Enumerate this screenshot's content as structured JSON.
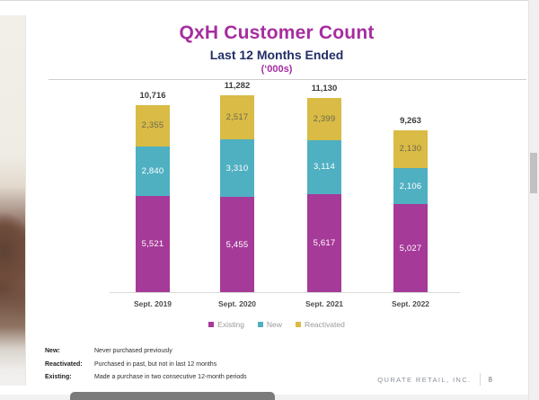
{
  "slide": {
    "title": "QxH Customer Count",
    "subtitle": "Last 12 Months Ended",
    "units": "(‘000s)"
  },
  "chart_data": {
    "type": "bar",
    "variant": "stacked",
    "title": "QxH Customer Count",
    "subtitle": "Last 12 Months Ended",
    "units": "thousands of customers",
    "categories": [
      "Sept. 2019",
      "Sept. 2020",
      "Sept. 2021",
      "Sept. 2022"
    ],
    "series": [
      {
        "name": "Existing",
        "color": "#a63a99",
        "label_color": "#ffffff",
        "values": [
          5521,
          5455,
          5617,
          5027
        ]
      },
      {
        "name": "New",
        "color": "#4fb0c1",
        "label_color": "#ffffff",
        "values": [
          2840,
          3310,
          3114,
          2106
        ]
      },
      {
        "name": "Reactivated",
        "color": "#d9bb45",
        "label_color": "#6f6a50",
        "values": [
          2355,
          2517,
          2399,
          2130
        ]
      }
    ],
    "totals": [
      10716,
      11282,
      11130,
      9263
    ],
    "legend_position": "bottom",
    "grid": false
  },
  "footnotes": [
    {
      "term": "New:",
      "definition": "Never purchased previously"
    },
    {
      "term": "Reactivated:",
      "definition": "Purchased in past, but not in last 12 months"
    },
    {
      "term": "Existing:",
      "definition": "Made a purchase in two consecutive 12-month periods"
    }
  ],
  "footer": {
    "company": "QURATE RETAIL, INC.",
    "page": "8"
  },
  "colors": {
    "title_magenta": "#a62da0",
    "subtitle_navy": "#232e66",
    "existing_purple": "#a63a99",
    "new_teal": "#4fb0c1",
    "reactivated_yellow": "#d9bb45"
  }
}
